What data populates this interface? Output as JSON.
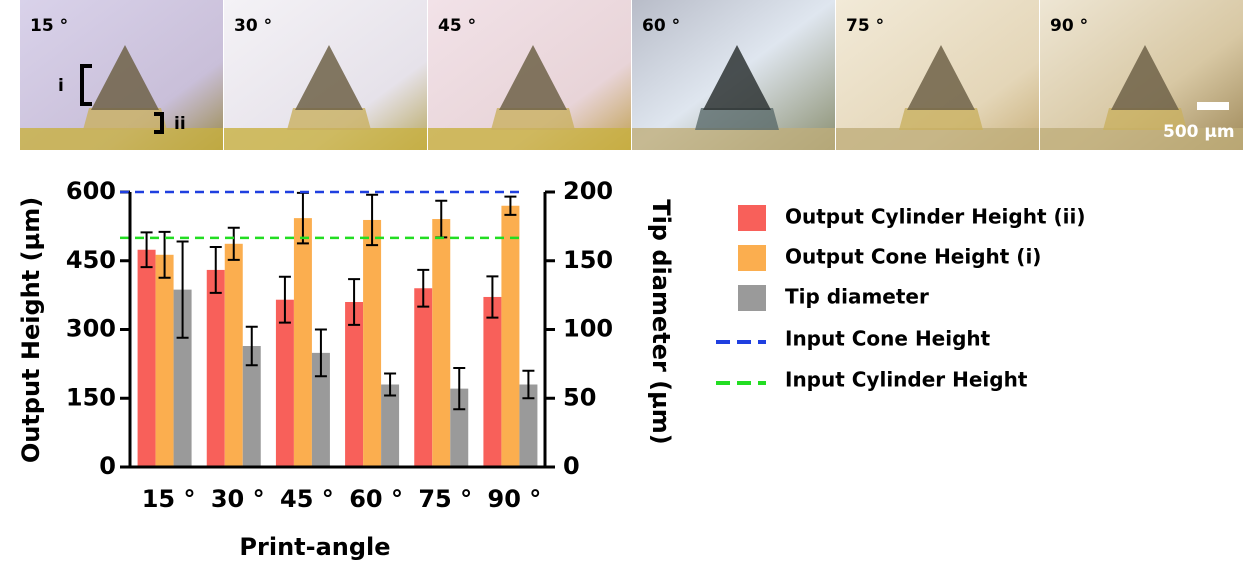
{
  "image_strip": {
    "labels": [
      "15 °",
      "30 °",
      "45 °",
      "60 °",
      "75 °",
      "90 °"
    ],
    "bracket_upper": "i",
    "bracket_lower": "ii",
    "scale_bar": "500 µm"
  },
  "chart_data": {
    "type": "bar",
    "categories": [
      "15 °",
      "30 °",
      "45 °",
      "60 °",
      "75 °",
      "90 °"
    ],
    "x_label": "Print-angle",
    "y_label": "Output Height (µm)",
    "y2_label": "Tip diameter (µm)",
    "ylim": [
      0,
      600
    ],
    "yticks": [
      0,
      150,
      300,
      450,
      600
    ],
    "y2lim": [
      0,
      200
    ],
    "y2ticks": [
      0,
      50,
      100,
      150,
      200
    ],
    "series": [
      {
        "name": "Output Cylinder Height (ii)",
        "color": "#f8605a",
        "values": [
          474,
          430,
          365,
          360,
          390,
          371
        ],
        "errors": [
          38,
          50,
          50,
          50,
          40,
          45
        ]
      },
      {
        "name": "Output Cone Height (i)",
        "color": "#fbae4f",
        "values": [
          463,
          487,
          543,
          539,
          541,
          570
        ],
        "errors": [
          50,
          35,
          55,
          55,
          40,
          20
        ]
      },
      {
        "name": "Tip diameter",
        "color": "#9a9a9a",
        "axis": "y2",
        "values": [
          129,
          88,
          83,
          60,
          57,
          60
        ],
        "errors": [
          35,
          14,
          17,
          8,
          15,
          10
        ]
      }
    ],
    "reference_lines": [
      {
        "name": "Input Cone Height",
        "color": "#1f3fe0",
        "value": 600
      },
      {
        "name": "Input Cylinder Height",
        "color": "#22dd22",
        "value": 500
      }
    ]
  }
}
